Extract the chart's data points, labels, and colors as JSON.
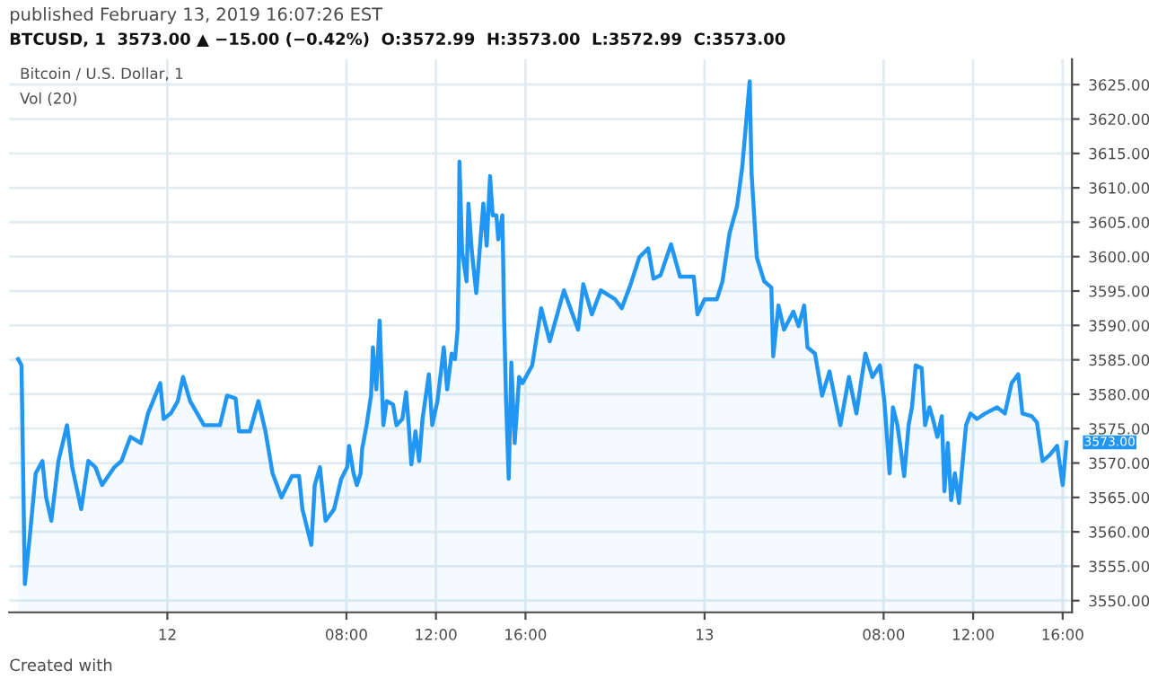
{
  "chart_data": {
    "type": "area",
    "title": "Bitcoin / U.S. Dollar, 1",
    "subtitle": "BTCUSD, 1  3573.00 ▲ −15.00 (−0.42%)  O:3572.99  H:3573.00  L:3572.99  C:3573.00",
    "annotations": [
      "published February 13, 2019 16:07:26 EST",
      "Vol (20)",
      "Created with",
      {
        "text": "3573.00",
        "x": "2019-02-13T16:10",
        "y": 3573.0
      }
    ],
    "series": [
      {
        "color": "#2196f3",
        "x": [
          "2019-02-11T17:20",
          "2019-02-11T17:29",
          "2019-02-11T17:38",
          "2019-02-11T17:52",
          "2019-02-11T18:07",
          "2019-02-11T18:25",
          "2019-02-11T18:35",
          "2019-02-11T18:49",
          "2019-02-11T19:08",
          "2019-02-11T19:31",
          "2019-02-11T19:45",
          "2019-02-11T20:09",
          "2019-02-11T20:28",
          "2019-02-11T20:47",
          "2019-02-11T21:05",
          "2019-02-11T21:38",
          "2019-02-11T21:57",
          "2019-02-11T22:21",
          "2019-02-11T22:49",
          "2019-02-11T23:08",
          "2019-02-11T23:41",
          "2019-02-11T23:50",
          "2019-02-12T00:09",
          "2019-02-12T00:28",
          "2019-02-12T00:42",
          "2019-02-12T01:01",
          "2019-02-12T01:20",
          "2019-02-12T01:38",
          "2019-02-12T02:21",
          "2019-02-12T02:40",
          "2019-02-12T03:03",
          "2019-02-12T03:12",
          "2019-02-12T03:41",
          "2019-02-12T04:04",
          "2019-02-12T04:23",
          "2019-02-12T04:42",
          "2019-02-12T05:06",
          "2019-02-12T05:34",
          "2019-02-12T05:53",
          "2019-02-12T06:02",
          "2019-02-12T06:26",
          "2019-02-12T06:35",
          "2019-02-12T06:49",
          "2019-02-12T07:04",
          "2019-02-12T07:27",
          "2019-02-12T07:46",
          "2019-02-12T08:02",
          "2019-02-12T08:07",
          "2019-02-12T08:19",
          "2019-02-12T08:28",
          "2019-02-12T08:38",
          "2019-02-12T08:42",
          "2019-02-12T08:54",
          "2019-02-12T09:06",
          "2019-02-12T09:11",
          "2019-02-12T09:20",
          "2019-02-12T09:29",
          "2019-02-12T09:39",
          "2019-02-12T09:48",
          "2019-02-12T10:05",
          "2019-02-12T10:14",
          "2019-02-12T10:30",
          "2019-02-12T10:40",
          "2019-02-12T10:47",
          "2019-02-12T10:54",
          "2019-02-12T11:05",
          "2019-02-12T11:15",
          "2019-02-12T11:24",
          "2019-02-12T11:41",
          "2019-02-12T11:50",
          "2019-02-12T12:04",
          "2019-02-12T12:21",
          "2019-02-12T12:30",
          "2019-02-12T12:42",
          "2019-02-12T12:51",
          "2019-02-12T12:58",
          "2019-02-12T13:01",
          "2019-02-12T13:03",
          "2019-02-12T13:10",
          "2019-02-12T13:22",
          "2019-02-12T13:27",
          "2019-02-12T13:36",
          "2019-02-12T13:48",
          "2019-02-12T13:57",
          "2019-02-12T14:07",
          "2019-02-12T14:16",
          "2019-02-12T14:25",
          "2019-02-12T14:32",
          "2019-02-12T14:42",
          "2019-02-12T14:47",
          "2019-02-12T14:58",
          "2019-02-12T15:03",
          "2019-02-12T15:08",
          "2019-02-12T15:15",
          "2019-02-12T15:22",
          "2019-02-12T15:31",
          "2019-02-12T15:43",
          "2019-02-12T15:52",
          "2019-02-12T16:18",
          "2019-02-12T16:42",
          "2019-02-12T17:05",
          "2019-02-12T17:43",
          "2019-02-12T18:21",
          "2019-02-12T18:35",
          "2019-02-12T18:58",
          "2019-02-12T19:22",
          "2019-02-12T20:00",
          "2019-02-12T20:18",
          "2019-02-12T20:42",
          "2019-02-12T21:05",
          "2019-02-12T21:29",
          "2019-02-12T21:43",
          "2019-02-12T22:02",
          "2019-02-12T22:30",
          "2019-02-12T22:54",
          "2019-02-12T23:31",
          "2019-02-12T23:41",
          "2019-02-13T00:00",
          "2019-02-13T00:33",
          "2019-02-13T00:48",
          "2019-02-13T01:07",
          "2019-02-13T01:27",
          "2019-02-13T01:41",
          "2019-02-13T02:01",
          "2019-02-13T02:06",
          "2019-02-13T02:20",
          "2019-02-13T02:40",
          "2019-02-13T02:59",
          "2019-02-13T03:04",
          "2019-02-13T03:18",
          "2019-02-13T03:33",
          "2019-02-13T03:58",
          "2019-02-13T04:12",
          "2019-02-13T04:27",
          "2019-02-13T04:36",
          "2019-02-13T04:56",
          "2019-02-13T05:15",
          "2019-02-13T05:35",
          "2019-02-13T06:04",
          "2019-02-13T06:27",
          "2019-02-13T06:47",
          "2019-02-13T07:11",
          "2019-02-13T07:30",
          "2019-02-13T07:50",
          "2019-02-13T08:02",
          "2019-02-13T08:16",
          "2019-02-13T08:25",
          "2019-02-13T08:37",
          "2019-02-13T08:46",
          "2019-02-13T08:55",
          "2019-02-13T09:07",
          "2019-02-13T09:16",
          "2019-02-13T09:26",
          "2019-02-13T09:42",
          "2019-02-13T09:51",
          "2019-02-13T10:03",
          "2019-02-13T10:12",
          "2019-02-13T10:24",
          "2019-02-13T10:36",
          "2019-02-13T10:43",
          "2019-02-13T10:52",
          "2019-02-13T11:01",
          "2019-02-13T11:11",
          "2019-02-13T11:22",
          "2019-02-13T11:32",
          "2019-02-13T11:41",
          "2019-02-13T11:53",
          "2019-02-13T12:10",
          "2019-02-13T12:32",
          "2019-02-13T13:04",
          "2019-02-13T13:25",
          "2019-02-13T13:43",
          "2019-02-13T14:01",
          "2019-02-13T14:12",
          "2019-02-13T14:37",
          "2019-02-13T14:51",
          "2019-02-13T15:06",
          "2019-02-13T15:24",
          "2019-02-13T15:45",
          "2019-02-13T16:00",
          "2019-02-13T16:10"
        ],
        "values": [
          3585.1,
          3584.2,
          3552.4,
          3559.8,
          3568.5,
          3570.3,
          3565.0,
          3561.6,
          3570.3,
          3575.5,
          3569.4,
          3563.3,
          3570.3,
          3569.4,
          3566.8,
          3569.4,
          3570.3,
          3573.8,
          3572.9,
          3577.2,
          3581.6,
          3576.4,
          3577.2,
          3579.0,
          3582.5,
          3579.0,
          3577.2,
          3575.5,
          3575.5,
          3579.8,
          3579.4,
          3574.6,
          3574.6,
          3579.0,
          3574.6,
          3568.5,
          3565.0,
          3568.1,
          3568.1,
          3563.3,
          3558.1,
          3566.8,
          3569.4,
          3561.6,
          3563.3,
          3567.7,
          3569.4,
          3572.5,
          3568.5,
          3566.8,
          3568.5,
          3572.0,
          3575.5,
          3579.8,
          3586.8,
          3580.7,
          3590.7,
          3575.5,
          3579.0,
          3578.5,
          3575.5,
          3576.4,
          3580.3,
          3575.5,
          3569.8,
          3574.6,
          3570.3,
          3576.4,
          3582.9,
          3575.5,
          3579.0,
          3586.8,
          3580.7,
          3585.9,
          3585.1,
          3589.4,
          3599.0,
          3613.8,
          3600.8,
          3596.4,
          3607.7,
          3600.8,
          3594.7,
          3600.8,
          3607.7,
          3601.6,
          3611.7,
          3606.0,
          3606.0,
          3602.5,
          3606.0,
          3590.3,
          3579.0,
          3567.7,
          3584.6,
          3572.9,
          3582.5,
          3581.6,
          3584.2,
          3592.5,
          3587.7,
          3595.1,
          3589.4,
          3596.0,
          3591.6,
          3595.1,
          3593.8,
          3592.5,
          3596.0,
          3599.9,
          3601.2,
          3596.8,
          3597.3,
          3601.8,
          3597.1,
          3597.1,
          3591.6,
          3593.8,
          3593.8,
          3596.4,
          3603.4,
          3607.3,
          3613.0,
          3625.5,
          3612.1,
          3599.9,
          3596.4,
          3595.5,
          3585.5,
          3592.9,
          3589.4,
          3592.0,
          3589.9,
          3592.9,
          3586.8,
          3585.9,
          3579.8,
          3583.3,
          3575.5,
          3582.5,
          3577.2,
          3585.9,
          3582.5,
          3584.2,
          3579.0,
          3568.5,
          3578.1,
          3575.5,
          3572.0,
          3568.1,
          3575.5,
          3578.1,
          3584.2,
          3583.8,
          3575.5,
          3578.1,
          3576.4,
          3573.8,
          3576.8,
          3565.9,
          3572.9,
          3564.6,
          3568.5,
          3564.2,
          3570.3,
          3575.5,
          3577.2,
          3576.4,
          3577.2,
          3578.1,
          3577.2,
          3581.6,
          3582.9,
          3577.2,
          3576.8,
          3575.9,
          3570.3,
          3571.1,
          3572.5,
          3566.8,
          3573.0
        ]
      }
    ],
    "xlim": [
      "2019-02-11T16:56",
      "2019-02-13T16:25"
    ],
    "xticks": [
      {
        "value": "2019-02-12",
        "label": "12"
      },
      {
        "value": "2019-02-12T08:00",
        "label": "08:00"
      },
      {
        "value": "2019-02-12T12:00",
        "label": "12:00"
      },
      {
        "value": "2019-02-12T16:00",
        "label": "16:00"
      },
      {
        "value": "2019-02-13",
        "label": "13"
      },
      {
        "value": "2019-02-13T08:00",
        "label": "08:00"
      },
      {
        "value": "2019-02-13T12:00",
        "label": "12:00"
      },
      {
        "value": "2019-02-13T16:00",
        "label": "16:00"
      }
    ],
    "ylim": [
      3548.3,
      3628.7
    ],
    "yticks": [
      {
        "value": 3550,
        "label": "3550.00"
      },
      {
        "value": 3555,
        "label": "3555.00"
      },
      {
        "value": 3560,
        "label": "3560.00"
      },
      {
        "value": 3565,
        "label": "3565.00"
      },
      {
        "value": 3570,
        "label": "3570.00"
      },
      {
        "value": 3575,
        "label": "3575.00"
      },
      {
        "value": 3580,
        "label": "3580.00"
      },
      {
        "value": 3585,
        "label": "3585.00"
      },
      {
        "value": 3590,
        "label": "3590.00"
      },
      {
        "value": 3595,
        "label": "3595.00"
      },
      {
        "value": 3600,
        "label": "3600.00"
      },
      {
        "value": 3605,
        "label": "3605.00"
      },
      {
        "value": 3610,
        "label": "3610.00"
      },
      {
        "value": 3615,
        "label": "3615.00"
      },
      {
        "value": 3620,
        "label": "3620.00"
      },
      {
        "value": 3625,
        "label": "3625.00"
      }
    ],
    "grid": true,
    "legend": false
  }
}
